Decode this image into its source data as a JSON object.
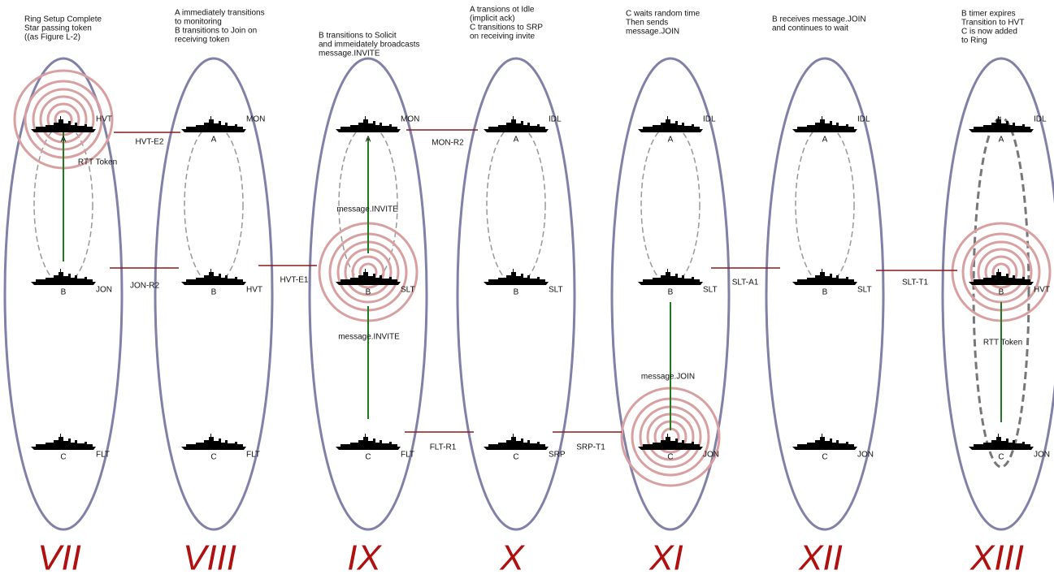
{
  "panels": [
    {
      "caption": [
        "Ring Setup Complete",
        "Star passing token",
        "((as Figure L-2)"
      ],
      "numeral": "VII",
      "nodes": [
        {
          "label": "A",
          "state": "HVT"
        },
        {
          "label": "B",
          "state": "JON"
        },
        {
          "label": "C",
          "state": "FLT"
        }
      ],
      "notes": [
        "RTT Token"
      ]
    },
    {
      "caption": [
        "A immediately transitions",
        "to monitoring",
        "B transitions to Join on",
        "receiving token"
      ],
      "numeral": "VIII",
      "nodes": [
        {
          "label": "A",
          "state": "MON"
        },
        {
          "label": "B",
          "state": "HVT"
        },
        {
          "label": "C",
          "state": "FLT"
        }
      ],
      "notes": []
    },
    {
      "caption": [
        "B transitions to Solicit",
        "and immeidately broadcasts",
        "message.INVITE"
      ],
      "numeral": "IX",
      "nodes": [
        {
          "label": "A",
          "state": "MON"
        },
        {
          "label": "B",
          "state": "SLT"
        },
        {
          "label": "C",
          "state": "FLT"
        }
      ],
      "notes": [
        "message.INVITE",
        "message.INVITE"
      ]
    },
    {
      "caption": [
        "A transions ot Idle",
        "(implicit ack)",
        "C transitions to SRP",
        "on receiving invite"
      ],
      "numeral": "X",
      "nodes": [
        {
          "label": "A",
          "state": "IDL"
        },
        {
          "label": "B",
          "state": "SLT"
        },
        {
          "label": "C",
          "state": "SRP"
        }
      ],
      "notes": []
    },
    {
      "caption": [
        "C waits random time",
        "Then sends",
        "message.JOIN"
      ],
      "numeral": "XI",
      "nodes": [
        {
          "label": "A",
          "state": "IDL"
        },
        {
          "label": "B",
          "state": "SLT"
        },
        {
          "label": "C",
          "state": "JON"
        }
      ],
      "notes": [
        "message.JOIN"
      ]
    },
    {
      "caption": [
        "B receives message.JOIN",
        "and continues to wait"
      ],
      "numeral": "XII",
      "nodes": [
        {
          "label": "A",
          "state": "IDL"
        },
        {
          "label": "B",
          "state": "SLT"
        },
        {
          "label": "C",
          "state": "JON"
        }
      ],
      "notes": []
    },
    {
      "caption": [
        "B timer expires",
        "Transition to HVT",
        "C is now added",
        "to Ring"
      ],
      "numeral": "XIII",
      "nodes": [
        {
          "label": "A",
          "state": "IDL"
        },
        {
          "label": "B",
          "state": "HVT"
        },
        {
          "label": "C",
          "state": "JON"
        }
      ],
      "notes": [
        "RTT Token"
      ]
    }
  ],
  "transitions": [
    "HVT-E2",
    "JON-R2",
    "HVT-E1",
    "MON-R2",
    "FLT-R1",
    "SRP-T1",
    "SLT-A1",
    "SLT-T1"
  ]
}
